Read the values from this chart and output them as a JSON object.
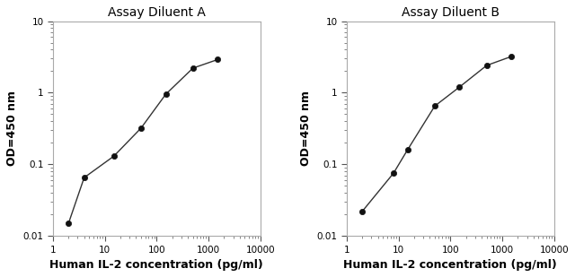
{
  "panel_A": {
    "title": "Assay Diluent A",
    "x": [
      2,
      4,
      15,
      50,
      150,
      500,
      1500
    ],
    "y": [
      0.015,
      0.065,
      0.13,
      0.32,
      0.95,
      2.2,
      2.9
    ],
    "xlabel": "Human IL-2 concentration (pg/ml)",
    "ylabel": "OD=450 nm",
    "xlim": [
      1,
      10000
    ],
    "ylim": [
      0.01,
      10
    ]
  },
  "panel_B": {
    "title": "Assay Diluent B",
    "x": [
      2,
      8,
      15,
      50,
      150,
      500,
      1500
    ],
    "y": [
      0.022,
      0.075,
      0.16,
      0.65,
      1.2,
      2.4,
      3.2
    ],
    "xlabel": "Human IL-2 concentration (pg/ml)",
    "ylabel": "OD=450 nm",
    "xlim": [
      1,
      10000
    ],
    "ylim": [
      0.01,
      10
    ]
  },
  "line_color": "#333333",
  "marker_color": "#111111",
  "marker_size": 4.5,
  "marker_style": "o",
  "line_width": 1.0,
  "title_fontsize": 10,
  "label_fontsize": 9,
  "tick_fontsize": 7.5,
  "bg_color": "#ffffff",
  "fig_bg_color": "#ffffff",
  "spine_color": "#aaaaaa"
}
